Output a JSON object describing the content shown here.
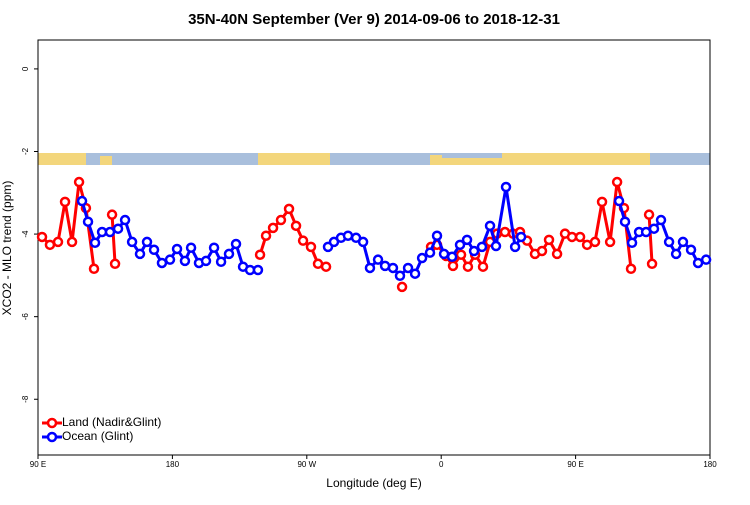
{
  "chart_data": {
    "type": "line",
    "title": "35N-40N September (Ver 9)   2014-09-06 to 2018-12-31",
    "x_label": "Longitude (deg E)",
    "y_label": "XCO2 - MLO trend (ppm)",
    "xlim": [
      90,
      540
    ],
    "ylim": [
      -9.35,
      0.7
    ],
    "xticks": [
      {
        "value": 90,
        "label": "90 E"
      },
      180,
      {
        "value": 270,
        "label": "90 W"
      },
      {
        "value": 360,
        "label": "0"
      },
      {
        "value": 450,
        "label": "90 E"
      },
      {
        "value": 540,
        "label": "180"
      }
    ],
    "yticks": [
      0,
      -2,
      -4,
      -6,
      -8
    ],
    "legend": "bottom-left",
    "series": [
      {
        "name": "Land (Nadir&Glint)",
        "color": "#ff0000",
        "x": [
          92.7,
          98.0,
          103.4,
          108.1,
          112.8,
          117.5,
          122.1,
          127.5,
          null,
          139.6,
          141.6,
          null,
          238.7,
          242.7,
          247.4,
          252.7,
          258.1,
          262.8,
          267.5,
          272.8,
          277.5,
          282.9,
          null,
          333.8,
          null,
          353.2,
          357.2,
          363.2,
          367.9,
          373.3,
          377.9,
          382.7,
          388.0,
          392.7,
          397.4,
          402.7,
          408.1,
          412.8,
          417.5,
          422.8,
          427.5,
          432.2,
          437.6,
          442.9,
          447.6,
          453.0,
          457.7,
          463.0,
          467.7,
          473.1,
          477.8,
          482.4,
          487.1,
          null,
          499.2,
          501.2
        ],
        "values": [
          -4.07,
          -4.26,
          -4.19,
          -3.22,
          -4.19,
          -2.74,
          -3.37,
          -4.84,
          null,
          -3.53,
          -4.72,
          null,
          -4.5,
          -4.04,
          -3.85,
          -3.66,
          -3.39,
          -3.8,
          -4.16,
          -4.31,
          -4.72,
          -4.79,
          null,
          -5.28,
          null,
          -4.31,
          -4.26,
          -4.53,
          -4.77,
          -4.5,
          -4.79,
          -4.5,
          -4.79,
          -4.19,
          -3.99,
          -3.95,
          -3.99,
          -3.95,
          -4.16,
          -4.48,
          -4.41,
          -4.14,
          -4.48,
          -3.99,
          -4.07,
          -4.07,
          -4.26,
          -4.19,
          -3.22,
          -4.19,
          -2.74,
          -3.37,
          -4.84,
          null,
          -3.53,
          -4.72
        ]
      },
      {
        "name": "Ocean (Glint)",
        "color": "#0000ff",
        "x": [
          119.5,
          123.5,
          128.2,
          132.9,
          138.2,
          143.6,
          148.3,
          153.0,
          158.3,
          163.0,
          167.7,
          173.0,
          178.4,
          183.1,
          188.4,
          192.5,
          197.8,
          202.5,
          207.9,
          212.6,
          217.9,
          222.6,
          227.3,
          232.0,
          237.3,
          null,
          284.2,
          288.2,
          292.9,
          297.6,
          303.0,
          307.7,
          312.3,
          317.7,
          322.4,
          327.7,
          332.4,
          337.8,
          342.5,
          347.2,
          352.5,
          357.2,
          361.9,
          367.3,
          372.6,
          377.3,
          382.0,
          387.3,
          392.7,
          396.7,
          403.4,
          409.5,
          413.5,
          null,
          479.1,
          483.1,
          487.8,
          492.5,
          497.2,
          502.5,
          507.2,
          512.6,
          517.3,
          521.9,
          527.3,
          532.0,
          537.4
        ],
        "values": [
          -3.2,
          -3.7,
          -4.21,
          -3.95,
          -3.95,
          -3.87,
          -3.66,
          -4.19,
          -4.48,
          -4.19,
          -4.38,
          -4.7,
          -4.62,
          -4.36,
          -4.65,
          -4.33,
          -4.7,
          -4.65,
          -4.33,
          -4.67,
          -4.48,
          -4.24,
          -4.79,
          -4.87,
          -4.87,
          null,
          -4.31,
          -4.19,
          -4.09,
          -4.04,
          -4.09,
          -4.19,
          -4.82,
          -4.62,
          -4.77,
          -4.82,
          -5.01,
          -4.82,
          -4.96,
          -4.58,
          -4.45,
          -4.04,
          -4.48,
          -4.55,
          -4.26,
          -4.14,
          -4.41,
          -4.31,
          -3.8,
          -4.29,
          -2.86,
          -4.31,
          -4.07,
          null,
          -3.2,
          -3.7,
          -4.21,
          -3.95,
          -3.95,
          -3.87,
          -3.66,
          -4.19,
          -4.48,
          -4.19,
          -4.38,
          -4.7,
          -4.62
        ]
      }
    ]
  }
}
